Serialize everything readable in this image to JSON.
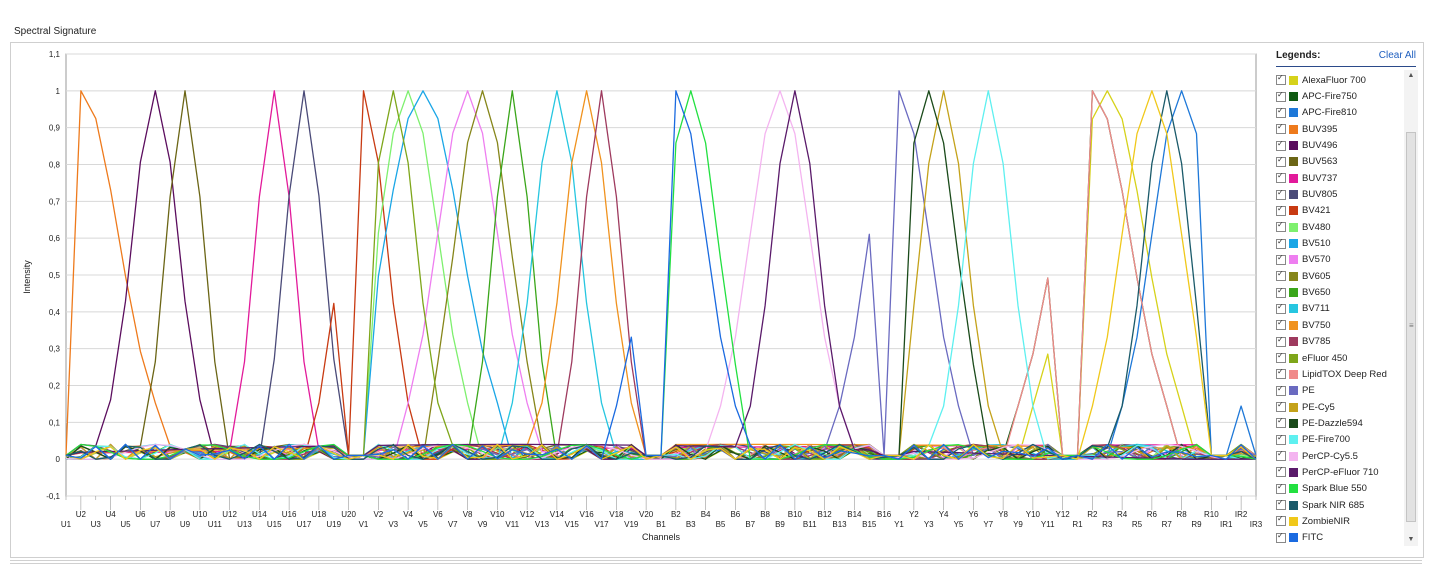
{
  "panel": {
    "title": "Spectral Signature"
  },
  "legend": {
    "title": "Legends:",
    "clear_all": "Clear All",
    "items": [
      {
        "label": "AlexaFluor 700",
        "color": "#d6d21a"
      },
      {
        "label": "APC-Fire750",
        "color": "#0f5a12"
      },
      {
        "label": "APC-Fire810",
        "color": "#1e78d8"
      },
      {
        "label": "BUV395",
        "color": "#ee7a1c"
      },
      {
        "label": "BUV496",
        "color": "#5b0d5e"
      },
      {
        "label": "BUV563",
        "color": "#6b6515"
      },
      {
        "label": "BUV737",
        "color": "#e21a9a"
      },
      {
        "label": "BUV805",
        "color": "#4a4a78"
      },
      {
        "label": "BV421",
        "color": "#c83a12"
      },
      {
        "label": "BV480",
        "color": "#7ef06e"
      },
      {
        "label": "BV510",
        "color": "#1aa6e6"
      },
      {
        "label": "BV570",
        "color": "#ee7ef0"
      },
      {
        "label": "BV605",
        "color": "#86861a"
      },
      {
        "label": "BV650",
        "color": "#3aa61a"
      },
      {
        "label": "BV711",
        "color": "#26c6e0"
      },
      {
        "label": "BV750",
        "color": "#f0921e"
      },
      {
        "label": "BV785",
        "color": "#9e3a5e"
      },
      {
        "label": "eFluor 450",
        "color": "#7ea61a"
      },
      {
        "label": "LipidTOX Deep Red",
        "color": "#f08a8a"
      },
      {
        "label": "PE",
        "color": "#6a6ac0"
      },
      {
        "label": "PE-Cy5",
        "color": "#c4a21a"
      },
      {
        "label": "PE-Dazzle594",
        "color": "#1a4a1a"
      },
      {
        "label": "PE-Fire700",
        "color": "#5ef0f0"
      },
      {
        "label": "PerCP-Cy5.5",
        "color": "#f4b4f0"
      },
      {
        "label": "PerCP-eFluor 710",
        "color": "#5a1a6a"
      },
      {
        "label": "Spark Blue 550",
        "color": "#22e040"
      },
      {
        "label": "Spark NIR 685",
        "color": "#1a5a6a"
      },
      {
        "label": "ZombieNIR",
        "color": "#f0c81a"
      },
      {
        "label": "FITC",
        "color": "#1a6ae0"
      }
    ]
  },
  "chart_data": {
    "type": "line",
    "xlabel": "Channels",
    "ylabel": "Intensity",
    "ylim": [
      -0.1,
      1.1
    ],
    "yticks": [
      -0.1,
      0,
      0.1,
      0.2,
      0.3,
      0.4,
      0.5,
      0.6,
      0.7,
      0.8,
      0.9,
      1,
      1.1
    ],
    "ytick_labels": [
      "-0,1",
      "0",
      "0,1",
      "0,2",
      "0,3",
      "0,4",
      "0,5",
      "0,6",
      "0,7",
      "0,8",
      "0,9",
      "1",
      "1,1"
    ],
    "grid": "horizontal",
    "categories": [
      "U1",
      "U2",
      "U3",
      "U4",
      "U5",
      "U6",
      "U7",
      "U8",
      "U9",
      "U10",
      "U11",
      "U12",
      "U13",
      "U14",
      "U15",
      "U16",
      "U17",
      "U18",
      "U19",
      "U20",
      "V1",
      "V2",
      "V3",
      "V4",
      "V5",
      "V6",
      "V7",
      "V8",
      "V9",
      "V10",
      "V11",
      "V12",
      "V13",
      "V14",
      "V15",
      "V16",
      "V17",
      "V18",
      "V19",
      "V20",
      "B1",
      "B2",
      "B3",
      "B4",
      "B5",
      "B6",
      "B7",
      "B8",
      "B9",
      "B10",
      "B11",
      "B12",
      "B13",
      "B14",
      "B15",
      "B16",
      "Y1",
      "Y2",
      "Y3",
      "Y4",
      "Y5",
      "Y6",
      "Y7",
      "Y8",
      "Y9",
      "Y10",
      "Y11",
      "Y12",
      "R1",
      "R2",
      "R3",
      "R4",
      "R5",
      "R6",
      "R7",
      "R8",
      "R9",
      "R10",
      "IR1",
      "IR2",
      "IR3"
    ],
    "peaks": [
      {
        "name": "AlexaFluor 700",
        "peak": "R3",
        "width": 2.5,
        "base": 0.01
      },
      {
        "name": "APC-Fire750",
        "peak": "R2",
        "width": 2.5,
        "base": 0.01
      },
      {
        "name": "APC-Fire810",
        "peak": "R8",
        "width": 2.0,
        "base": 0.01
      },
      {
        "name": "BUV395",
        "peak": "U2",
        "width": 2.5,
        "base": 0.02
      },
      {
        "name": "BUV496",
        "peak": "U7",
        "width": 1.5,
        "base": 0.03
      },
      {
        "name": "BUV563",
        "peak": "U9",
        "width": 1.2,
        "base": 0.02
      },
      {
        "name": "BUV737",
        "peak": "U15",
        "width": 1.2,
        "base": 0.02
      },
      {
        "name": "BUV805",
        "peak": "U17",
        "width": 1.2,
        "base": 0.03
      },
      {
        "name": "BV421",
        "peak": "V1",
        "width": 1.5,
        "base": 0.02
      },
      {
        "name": "BV480",
        "peak": "V4",
        "width": 2.0,
        "base": 0.02
      },
      {
        "name": "BV510",
        "peak": "V5",
        "width": 2.5,
        "base": 0.02
      },
      {
        "name": "BV570",
        "peak": "V8",
        "width": 2.0,
        "base": 0.02
      },
      {
        "name": "BV605",
        "peak": "V9",
        "width": 1.8,
        "base": 0.02
      },
      {
        "name": "BV650",
        "peak": "V11",
        "width": 1.2,
        "base": 0.02
      },
      {
        "name": "BV711",
        "peak": "V14",
        "width": 1.5,
        "base": 0.02
      },
      {
        "name": "BV750",
        "peak": "V16",
        "width": 1.5,
        "base": 0.02
      },
      {
        "name": "BV785",
        "peak": "V17",
        "width": 1.2,
        "base": 0.02
      },
      {
        "name": "eFluor 450",
        "peak": "V3",
        "width": 1.5,
        "base": 0.02
      },
      {
        "name": "LipidTOX Deep Red",
        "peak": "R2",
        "width": 2.5,
        "base": 0.01
      },
      {
        "name": "PE",
        "peak": "Y1",
        "width": 2.0,
        "base": 0.01
      },
      {
        "name": "PE-Cy5",
        "peak": "Y4",
        "width": 1.5,
        "base": 0.01
      },
      {
        "name": "PE-Dazzle594",
        "peak": "Y3",
        "width": 1.8,
        "base": 0.01
      },
      {
        "name": "PE-Fire700",
        "peak": "Y7",
        "width": 1.5,
        "base": 0.01
      },
      {
        "name": "PerCP-Cy5.5",
        "peak": "B9",
        "width": 2.0,
        "base": 0.01
      },
      {
        "name": "PerCP-eFluor 710",
        "peak": "B10",
        "width": 1.5,
        "base": 0.01
      },
      {
        "name": "Spark Blue 550",
        "peak": "B3",
        "width": 1.8,
        "base": 0.01
      },
      {
        "name": "Spark NIR 685",
        "peak": "R7",
        "width": 1.5,
        "base": 0.01
      },
      {
        "name": "ZombieNIR",
        "peak": "R6",
        "width": 2.0,
        "base": 0.01
      },
      {
        "name": "FITC",
        "peak": "B2",
        "width": 2.0,
        "base": 0.01
      }
    ]
  }
}
